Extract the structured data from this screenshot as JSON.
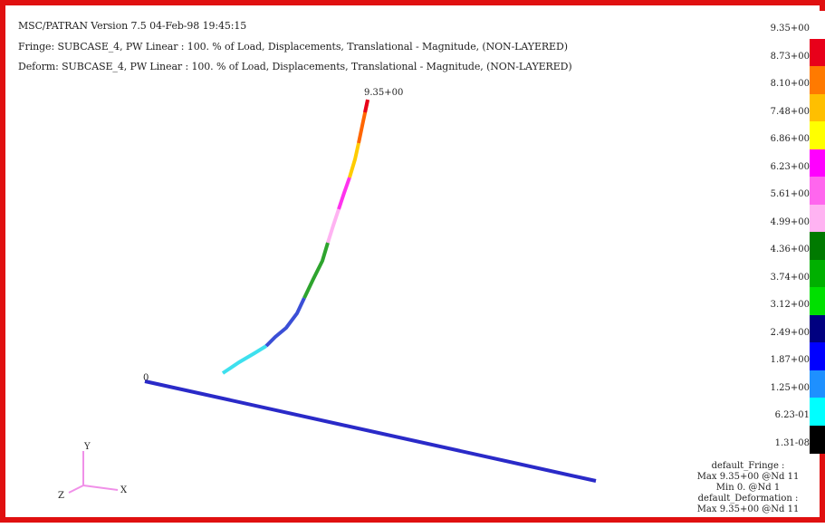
{
  "header": {
    "version_line": "MSC/PATRAN Version 7.5 04-Feb-98 19:45:15",
    "fringe_line": "Fringe: SUBCASE_4, PW Linear : 100. % of Load, Displacements, Translational - Magnitude, (NON-LAYERED)",
    "deform_line": "Deform: SUBCASE_4, PW Linear : 100. % of Load, Displacements, Translational - Magnitude, (NON-LAYERED)"
  },
  "model": {
    "tip_label": "9.35+00",
    "origin_label": "0"
  },
  "axes": {
    "y": "Y",
    "x": "X",
    "z": "Z"
  },
  "legend": {
    "levels": [
      {
        "label": "9.35+00",
        "color": "#ffffff"
      },
      {
        "label": "8.73+00",
        "color": "#e8001a"
      },
      {
        "label": "8.10+00",
        "color": "#ff7a00"
      },
      {
        "label": "7.48+00",
        "color": "#ffbf00"
      },
      {
        "label": "6.86+00",
        "color": "#ffff00"
      },
      {
        "label": "6.23+00",
        "color": "#ff00ff"
      },
      {
        "label": "5.61+00",
        "color": "#ff66ee"
      },
      {
        "label": "4.99+00",
        "color": "#ffb3f2"
      },
      {
        "label": "4.36+00",
        "color": "#007a00"
      },
      {
        "label": "3.74+00",
        "color": "#00b000"
      },
      {
        "label": "3.12+00",
        "color": "#00e000"
      },
      {
        "label": "2.49+00",
        "color": "#000080"
      },
      {
        "label": "1.87+00",
        "color": "#0000ff"
      },
      {
        "label": "1.25+00",
        "color": "#1e90ff"
      },
      {
        "label": "6.23-01",
        "color": "#00ffff"
      },
      {
        "label": "1.31-08",
        "color": "#000000"
      }
    ]
  },
  "summary": {
    "fringe_title": "default_Fringe :",
    "fringe_max": "Max 9.35+00 @Nd 11",
    "fringe_min": "Min 0. @Nd 1",
    "deform_title": "default_Deformation :",
    "deform_max": "Max 9.35+00 @Nd 11"
  }
}
